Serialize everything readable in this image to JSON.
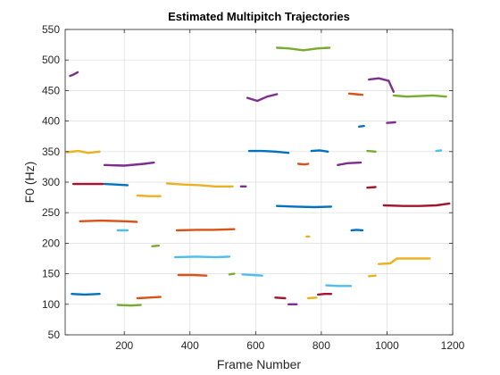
{
  "chart_data": {
    "type": "line",
    "title": "Estimated Multipitch Trajectories",
    "xlabel": "Frame Number",
    "ylabel": "F0 (Hz)",
    "xlim": [
      20,
      1200
    ],
    "ylim": [
      50,
      550
    ],
    "xticks": [
      200,
      400,
      600,
      800,
      1000,
      1200
    ],
    "yticks": [
      50,
      100,
      150,
      200,
      250,
      300,
      350,
      400,
      450,
      500,
      550
    ],
    "grid": true,
    "legend": "none",
    "colors": [
      "#0072BD",
      "#D95319",
      "#EDB120",
      "#7E2F8E",
      "#77AC30",
      "#4DBEEE",
      "#A2142F"
    ],
    "series": [
      {
        "color_index": 0,
        "x": [
          40,
          80,
          125
        ],
        "y": [
          117,
          116,
          117
        ]
      },
      {
        "color_index": 0,
        "x": [
          140,
          175,
          210
        ],
        "y": [
          297,
          296,
          295
        ]
      },
      {
        "color_index": 0,
        "x": [
          580,
          620,
          660,
          700
        ],
        "y": [
          351,
          351,
          350,
          348
        ]
      },
      {
        "color_index": 0,
        "x": [
          665,
          720,
          780,
          830
        ],
        "y": [
          261,
          260,
          259,
          260
        ]
      },
      {
        "color_index": 0,
        "x": [
          770,
          795,
          820
        ],
        "y": [
          351,
          352,
          350
        ]
      },
      {
        "color_index": 0,
        "x": [
          892,
          908,
          925
        ],
        "y": [
          221,
          222,
          221
        ]
      },
      {
        "color_index": 0,
        "x": [
          915,
          930
        ],
        "y": [
          391,
          392
        ]
      },
      {
        "color_index": 1,
        "x": [
          65,
          130,
          200,
          238
        ],
        "y": [
          236,
          237,
          236,
          235
        ]
      },
      {
        "color_index": 1,
        "x": [
          240,
          275,
          310
        ],
        "y": [
          110,
          111,
          112
        ]
      },
      {
        "color_index": 1,
        "x": [
          360,
          420,
          470,
          535
        ],
        "y": [
          221,
          222,
          222,
          223
        ]
      },
      {
        "color_index": 1,
        "x": [
          365,
          410,
          450
        ],
        "y": [
          148,
          148,
          147
        ]
      },
      {
        "color_index": 1,
        "x": [
          730,
          750,
          760
        ],
        "y": [
          330,
          329,
          330
        ]
      },
      {
        "color_index": 1,
        "x": [
          885,
          905,
          925
        ],
        "y": [
          445,
          444,
          443
        ]
      },
      {
        "color_index": 2,
        "x": [
          25,
          60,
          90,
          125
        ],
        "y": [
          349,
          351,
          348,
          350
        ]
      },
      {
        "color_index": 2,
        "x": [
          240,
          275,
          310
        ],
        "y": [
          278,
          277,
          277
        ]
      },
      {
        "color_index": 2,
        "x": [
          330,
          380,
          430,
          475,
          530
        ],
        "y": [
          298,
          296,
          295,
          293,
          293
        ]
      },
      {
        "color_index": 2,
        "x": [
          755,
          763
        ],
        "y": [
          211,
          211
        ]
      },
      {
        "color_index": 2,
        "x": [
          760,
          785
        ],
        "y": [
          110,
          111
        ]
      },
      {
        "color_index": 2,
        "x": [
          945,
          965
        ],
        "y": [
          146,
          147
        ]
      },
      {
        "color_index": 2,
        "x": [
          975,
          1010,
          1030,
          1080,
          1130
        ],
        "y": [
          166,
          167,
          175,
          175,
          175
        ]
      },
      {
        "color_index": 3,
        "x": [
          35,
          45,
          58
        ],
        "y": [
          474,
          476,
          480
        ]
      },
      {
        "color_index": 3,
        "x": [
          140,
          200,
          260,
          290
        ],
        "y": [
          328,
          327,
          330,
          332
        ]
      },
      {
        "color_index": 3,
        "x": [
          555,
          570
        ],
        "y": [
          293,
          293
        ]
      },
      {
        "color_index": 3,
        "x": [
          575,
          605,
          635,
          665
        ],
        "y": [
          438,
          433,
          440,
          444
        ]
      },
      {
        "color_index": 3,
        "x": [
          700,
          725
        ],
        "y": [
          100,
          100
        ]
      },
      {
        "color_index": 3,
        "x": [
          850,
          880,
          920
        ],
        "y": [
          328,
          331,
          332
        ]
      },
      {
        "color_index": 3,
        "x": [
          945,
          975,
          1005,
          1020
        ],
        "y": [
          468,
          470,
          466,
          448
        ]
      },
      {
        "color_index": 3,
        "x": [
          1000,
          1025
        ],
        "y": [
          397,
          398
        ]
      },
      {
        "color_index": 4,
        "x": [
          180,
          220,
          250
        ],
        "y": [
          99,
          98,
          99
        ]
      },
      {
        "color_index": 4,
        "x": [
          285,
          305
        ],
        "y": [
          195,
          196
        ]
      },
      {
        "color_index": 4,
        "x": [
          520,
          535
        ],
        "y": [
          149,
          150
        ]
      },
      {
        "color_index": 4,
        "x": [
          665,
          700,
          745,
          790,
          825
        ],
        "y": [
          520,
          519,
          516,
          519,
          520
        ]
      },
      {
        "color_index": 4,
        "x": [
          940,
          965
        ],
        "y": [
          351,
          350
        ]
      },
      {
        "color_index": 4,
        "x": [
          1020,
          1060,
          1100,
          1140,
          1180
        ],
        "y": [
          442,
          440,
          441,
          442,
          440
        ]
      },
      {
        "color_index": 5,
        "x": [
          180,
          210
        ],
        "y": [
          221,
          221
        ]
      },
      {
        "color_index": 5,
        "x": [
          355,
          420,
          480,
          520
        ],
        "y": [
          177,
          178,
          177,
          178
        ]
      },
      {
        "color_index": 5,
        "x": [
          560,
          590,
          620
        ],
        "y": [
          149,
          148,
          147
        ]
      },
      {
        "color_index": 5,
        "x": [
          815,
          850,
          890
        ],
        "y": [
          131,
          130,
          130
        ]
      },
      {
        "color_index": 5,
        "x": [
          1150,
          1165
        ],
        "y": [
          351,
          352
        ]
      },
      {
        "color_index": 6,
        "x": [
          45,
          90,
          135
        ],
        "y": [
          297,
          297,
          297
        ]
      },
      {
        "color_index": 6,
        "x": [
          660,
          690
        ],
        "y": [
          111,
          110
        ]
      },
      {
        "color_index": 6,
        "x": [
          790,
          810,
          830
        ],
        "y": [
          116,
          117,
          117
        ]
      },
      {
        "color_index": 6,
        "x": [
          940,
          965
        ],
        "y": [
          291,
          292
        ]
      },
      {
        "color_index": 6,
        "x": [
          990,
          1050,
          1100,
          1150,
          1190
        ],
        "y": [
          262,
          261,
          261,
          262,
          265
        ]
      }
    ]
  }
}
